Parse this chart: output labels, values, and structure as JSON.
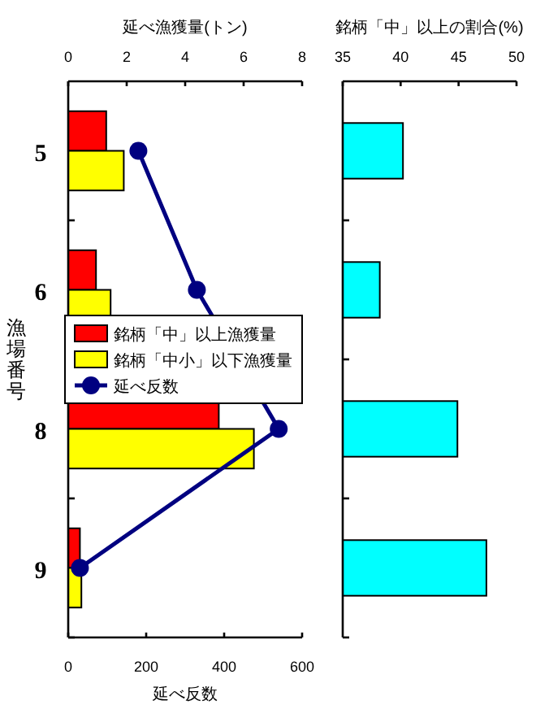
{
  "chart_data": [
    {
      "type": "bar",
      "orientation": "horizontal",
      "categories": [
        "5",
        "6",
        "8",
        "9"
      ],
      "ylabel": "漁場番号",
      "x2label": "延べ漁獲量(トン)",
      "x2lim": [
        0,
        8
      ],
      "x2ticks": [
        0,
        2,
        4,
        6,
        8
      ],
      "xlabel": "延べ反数",
      "xlim": [
        0,
        600
      ],
      "xticks": [
        0,
        200,
        400,
        600
      ],
      "legend": "right",
      "series": [
        {
          "name": "銘柄「中」以上漁獲量",
          "color": "#ff0000",
          "axis": "x2",
          "values": [
            1.3,
            0.95,
            5.15,
            0.4
          ]
        },
        {
          "name": "銘柄「中小」以下漁獲量",
          "color": "#ffff00",
          "axis": "x2",
          "values": [
            1.9,
            1.45,
            6.35,
            0.45
          ]
        },
        {
          "name": "延べ反数",
          "type": "line",
          "color": "#000080",
          "marker": "circle",
          "values": [
            180,
            330,
            540,
            30
          ]
        }
      ]
    },
    {
      "type": "bar",
      "orientation": "horizontal",
      "categories": [
        "5",
        "6",
        "8",
        "9"
      ],
      "tick_labels": "x",
      "xlabel": "銘柄「中」以上の割合(%)",
      "xlim": [
        35,
        50
      ],
      "xticks": [
        35,
        40,
        45,
        50
      ],
      "series": [
        {
          "color": "#00ffff",
          "values": [
            40.2,
            38.2,
            44.9,
            47.4
          ]
        }
      ]
    }
  ]
}
